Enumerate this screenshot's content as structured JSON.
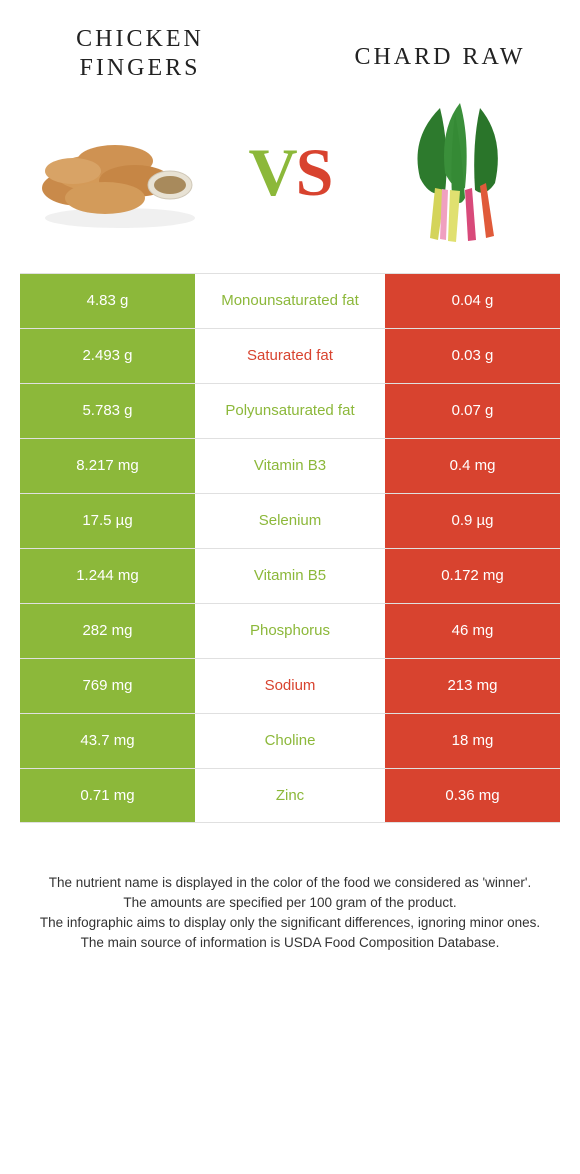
{
  "header": {
    "left_title": "Chicken fingers",
    "right_title": "Chard raw"
  },
  "vs": {
    "v": "V",
    "s": "S"
  },
  "colors": {
    "left_bg": "#8cb83a",
    "right_bg": "#d8432f",
    "mid_left_text": "#8cb83a",
    "mid_right_text": "#d8432f",
    "row_border": "#e0e0e0"
  },
  "rows": [
    {
      "left": "4.83 g",
      "label": "Monounsaturated fat",
      "right": "0.04 g",
      "winner": "left"
    },
    {
      "left": "2.493 g",
      "label": "Saturated fat",
      "right": "0.03 g",
      "winner": "right"
    },
    {
      "left": "5.783 g",
      "label": "Polyunsaturated fat",
      "right": "0.07 g",
      "winner": "left"
    },
    {
      "left": "8.217 mg",
      "label": "Vitamin B3",
      "right": "0.4 mg",
      "winner": "left"
    },
    {
      "left": "17.5 µg",
      "label": "Selenium",
      "right": "0.9 µg",
      "winner": "left"
    },
    {
      "left": "1.244 mg",
      "label": "Vitamin B5",
      "right": "0.172 mg",
      "winner": "left"
    },
    {
      "left": "282 mg",
      "label": "Phosphorus",
      "right": "46 mg",
      "winner": "left"
    },
    {
      "left": "769 mg",
      "label": "Sodium",
      "right": "213 mg",
      "winner": "right"
    },
    {
      "left": "43.7 mg",
      "label": "Choline",
      "right": "18 mg",
      "winner": "left"
    },
    {
      "left": "0.71 mg",
      "label": "Zinc",
      "right": "0.36 mg",
      "winner": "left"
    }
  ],
  "footer": {
    "l1": "The nutrient name is displayed in the color of the food we considered as 'winner'.",
    "l2": "The amounts are specified per 100 gram of the product.",
    "l3": "The infographic aims to display only the significant differences, ignoring minor ones.",
    "l4": "The main source of information is USDA Food Composition Database."
  }
}
